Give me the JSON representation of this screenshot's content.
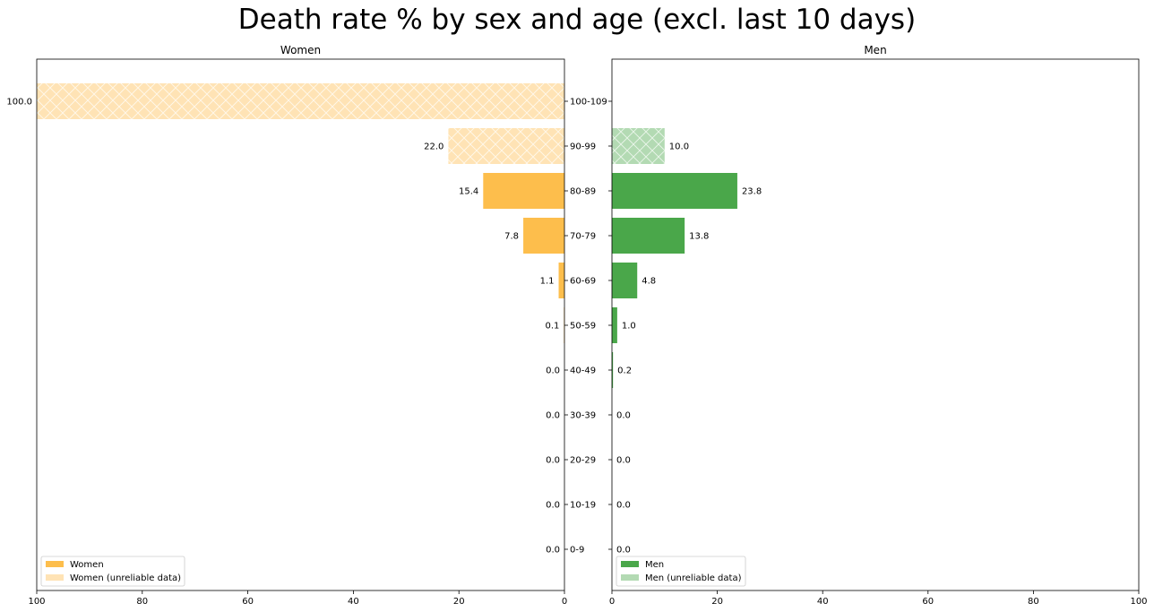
{
  "chart_data": {
    "type": "bar",
    "title": "Death rate % by sex and age (excl. last 10 days)",
    "categories": [
      "0-9",
      "10-19",
      "20-29",
      "30-39",
      "40-49",
      "50-59",
      "60-69",
      "70-79",
      "80-89",
      "90-99",
      "100-109"
    ],
    "panels": [
      {
        "title": "Women",
        "orientation": "horizontal-reversed",
        "xlim": [
          100,
          0
        ],
        "xticks": [
          100,
          80,
          60,
          40,
          20,
          0
        ],
        "legend_position": "lower-left",
        "series": [
          {
            "name": "Women",
            "color": "#fdbe4c",
            "values": [
              0.0,
              0.0,
              0.0,
              0.0,
              0.0,
              0.1,
              1.1,
              7.8,
              15.4,
              null,
              null
            ],
            "labels": [
              "0.0",
              "0.0",
              "0.0",
              "0.0",
              "0.0",
              "0.1",
              "1.1",
              "7.8",
              "15.4",
              "",
              ""
            ]
          },
          {
            "name": "Women (unreliable data)",
            "color": "#ffe3b5",
            "hatch": true,
            "values": [
              null,
              null,
              null,
              null,
              null,
              null,
              null,
              null,
              null,
              22.0,
              100.0
            ],
            "labels": [
              "",
              "",
              "",
              "",
              "",
              "",
              "",
              "",
              "",
              "22.0",
              "100.0"
            ]
          }
        ]
      },
      {
        "title": "Men",
        "orientation": "horizontal",
        "xlim": [
          0,
          100
        ],
        "xticks": [
          0,
          20,
          40,
          60,
          80,
          100
        ],
        "legend_position": "lower-left",
        "series": [
          {
            "name": "Men",
            "color": "#4aa74a",
            "values": [
              0.0,
              0.0,
              0.0,
              0.0,
              0.2,
              1.0,
              4.8,
              13.8,
              23.8,
              null,
              null
            ],
            "labels": [
              "0.0",
              "0.0",
              "0.0",
              "0.0",
              "0.2",
              "1.0",
              "4.8",
              "13.8",
              "23.8",
              "",
              ""
            ]
          },
          {
            "name": "Men (unreliable data)",
            "color": "#b3dab3",
            "hatch": true,
            "values": [
              null,
              null,
              null,
              null,
              null,
              null,
              null,
              null,
              null,
              10.0,
              null
            ],
            "labels": [
              "",
              "",
              "",
              "",
              "",
              "",
              "",
              "",
              "",
              "10.0",
              ""
            ]
          }
        ]
      }
    ]
  }
}
